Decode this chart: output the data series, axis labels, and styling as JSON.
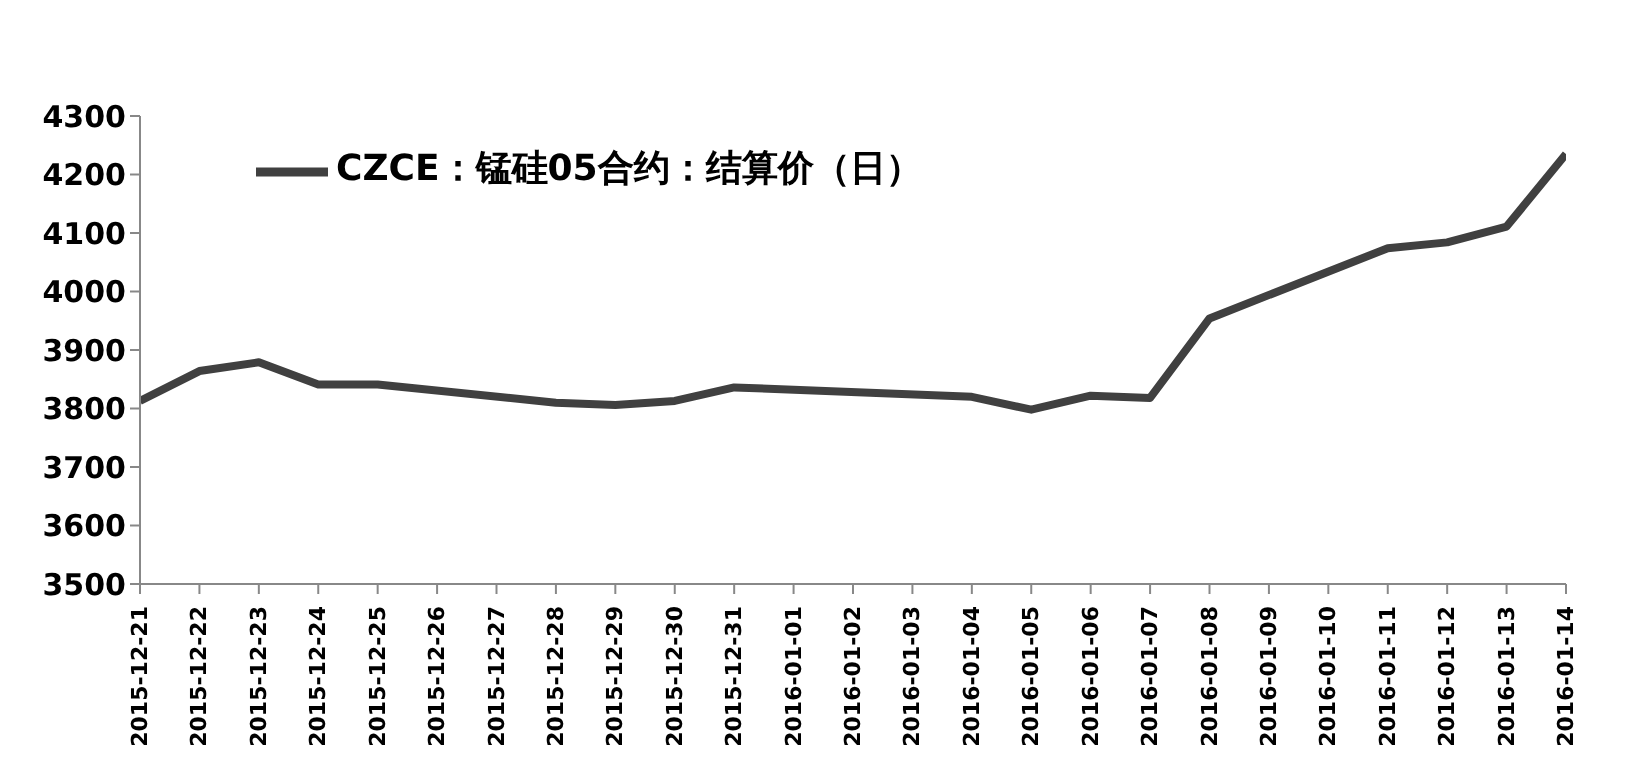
{
  "chart_data": {
    "type": "line",
    "x": [
      "2015-12-21",
      "2015-12-22",
      "2015-12-23",
      "2015-12-24",
      "2015-12-25",
      "2015-12-28",
      "2015-12-29",
      "2015-12-30",
      "2015-12-31",
      "2016-01-04",
      "2016-01-05",
      "2016-01-06",
      "2016-01-07",
      "2016-01-08",
      "2016-01-11",
      "2016-01-12",
      "2016-01-13",
      "2016-01-14"
    ],
    "series": [
      {
        "name": "CZCE：锰硅05合约：结算价（日）",
        "color": "#404040",
        "values": [
          3813,
          3864,
          3879,
          3841,
          3841,
          3810,
          3806,
          3813,
          3836,
          3820,
          3798,
          3822,
          3818,
          3954,
          4074,
          4084,
          4111,
          4235
        ]
      }
    ],
    "xlim": [
      "2015-12-21",
      "2016-01-14"
    ],
    "xticks": [
      "2015-12-21",
      "2015-12-22",
      "2015-12-23",
      "2015-12-24",
      "2015-12-25",
      "2015-12-26",
      "2015-12-27",
      "2015-12-28",
      "2015-12-29",
      "2015-12-30",
      "2015-12-31",
      "2016-01-01",
      "2016-01-02",
      "2016-01-03",
      "2016-01-04",
      "2016-01-05",
      "2016-01-06",
      "2016-01-07",
      "2016-01-08",
      "2016-01-09",
      "2016-01-10",
      "2016-01-11",
      "2016-01-12",
      "2016-01-13",
      "2016-01-14"
    ],
    "ylim": [
      3500,
      4300
    ],
    "yticks": [
      3500,
      3600,
      3700,
      3800,
      3900,
      4000,
      4100,
      4200,
      4300
    ],
    "grid": false,
    "legend": "top left",
    "marker": "none",
    "line_style": "solid"
  }
}
